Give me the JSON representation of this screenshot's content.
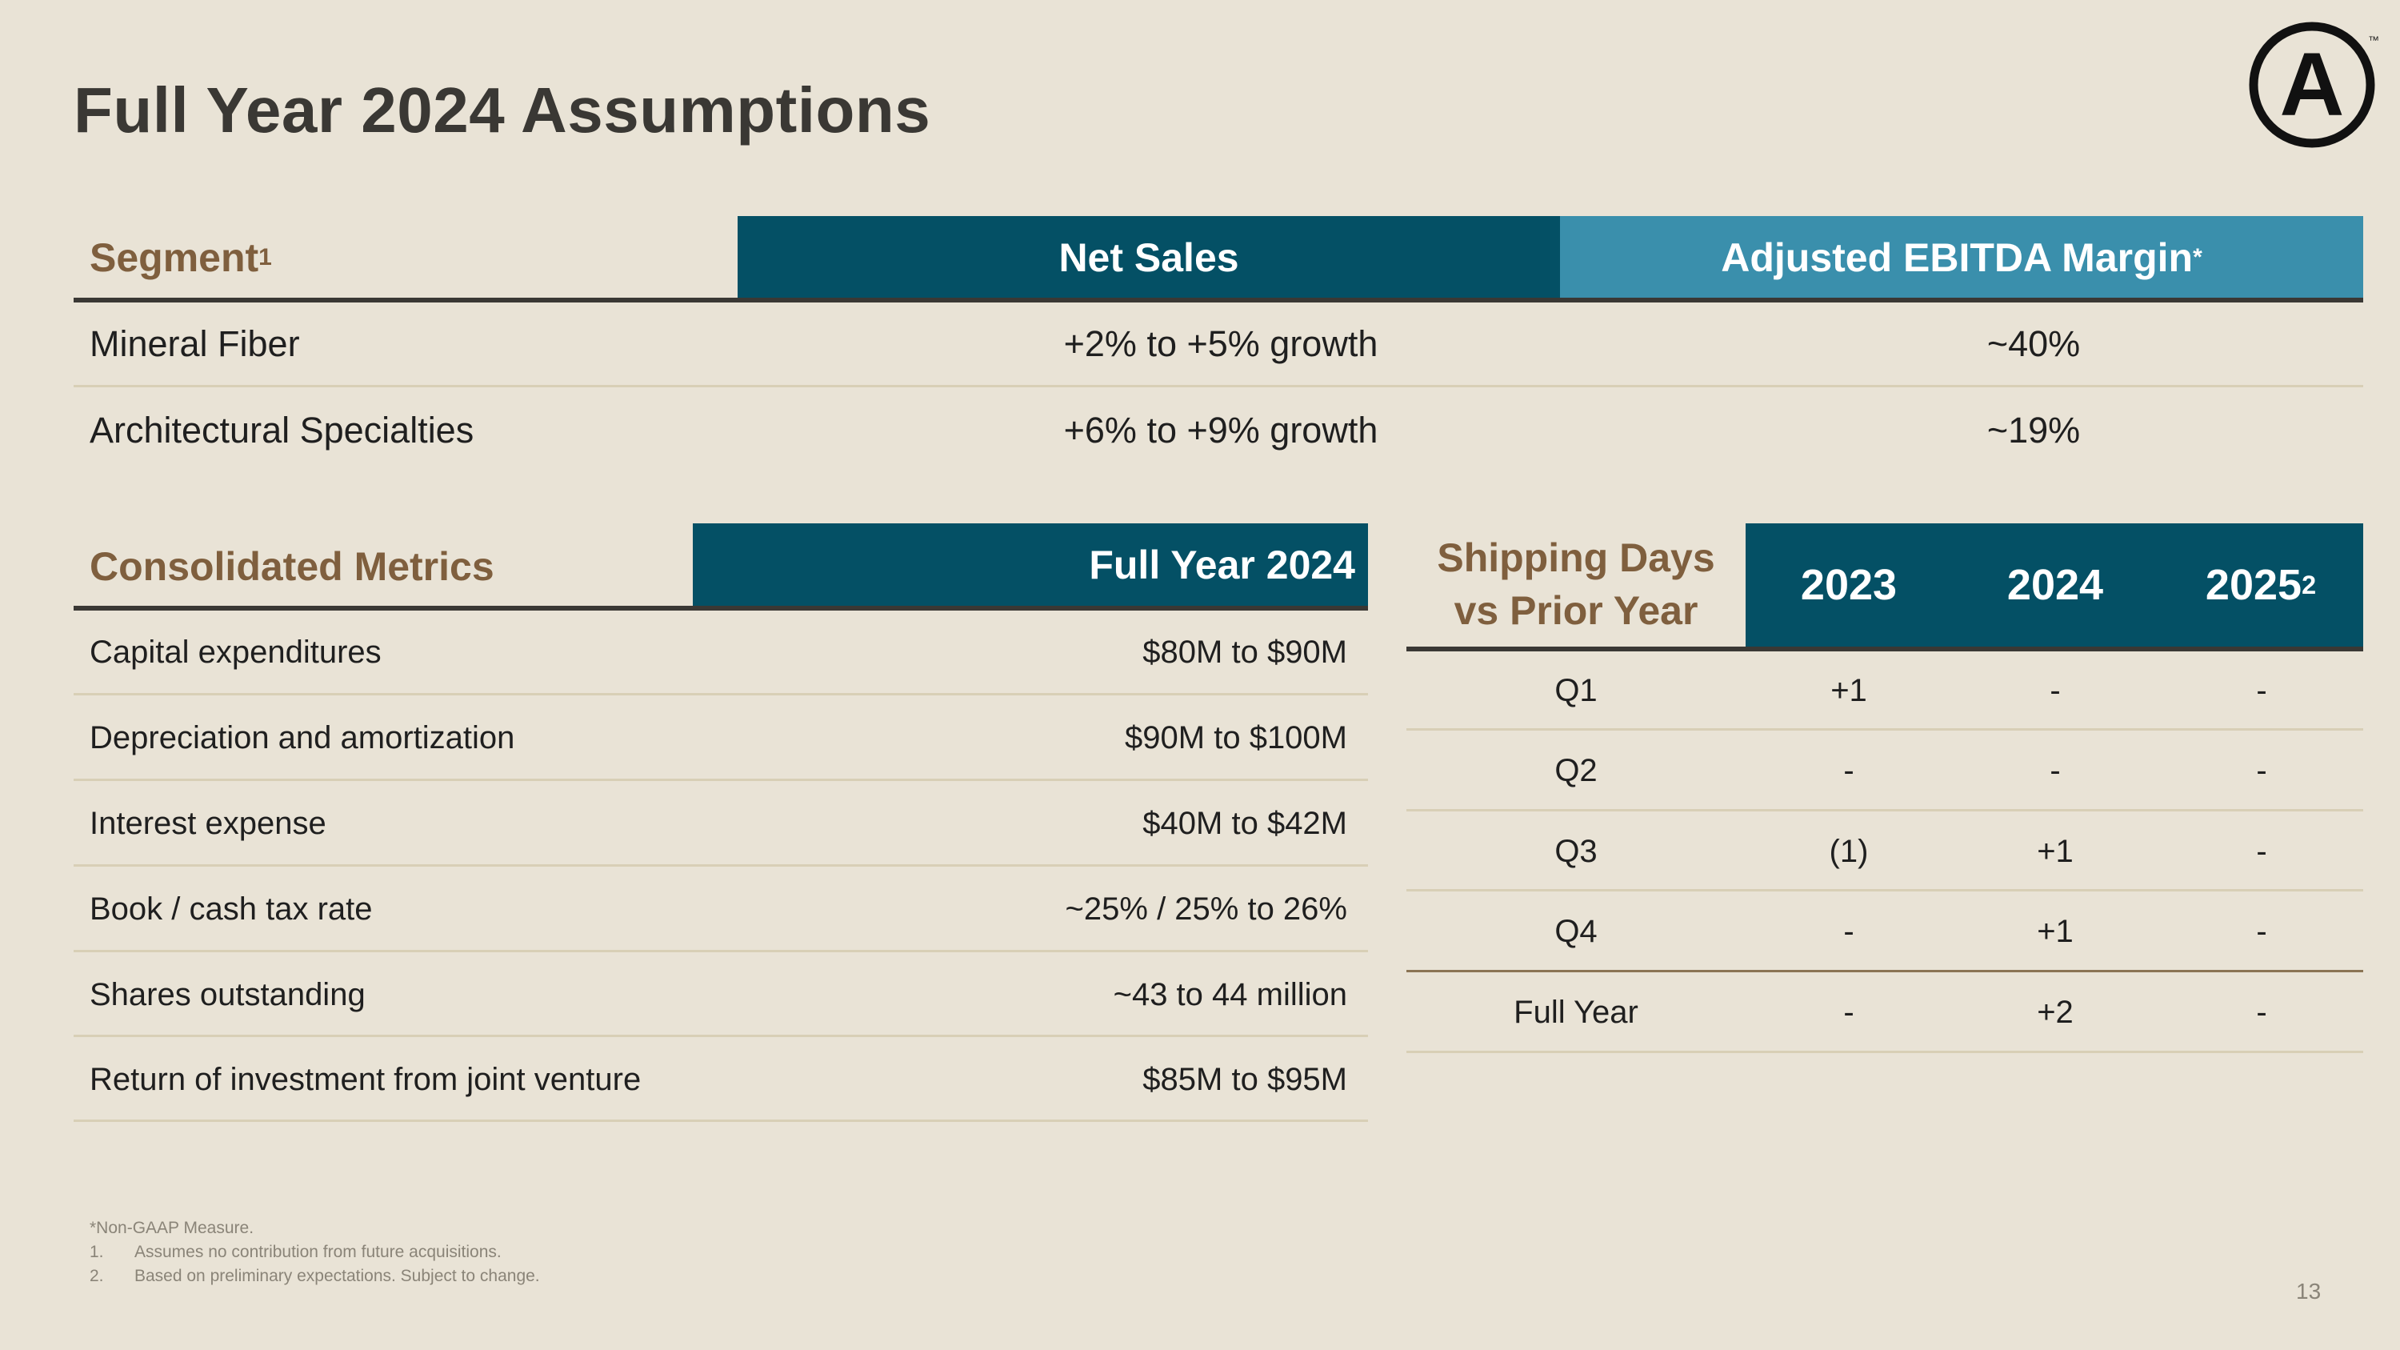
{
  "title": "Full Year 2024 Assumptions",
  "brand": {
    "logo_letter": "A",
    "trademark": "™"
  },
  "segment_table": {
    "header": {
      "segment": "Segment",
      "segment_sup": "1",
      "net_sales": "Net Sales",
      "ebitda": "Adjusted EBITDA Margin",
      "ebitda_sup": "*"
    },
    "rows": [
      {
        "segment": "Mineral Fiber",
        "net_sales": "+2% to +5% growth",
        "ebitda": "~40%"
      },
      {
        "segment": "Architectural Specialties",
        "net_sales": "+6% to +9% growth",
        "ebitda": "~19%"
      }
    ]
  },
  "consolidated_table": {
    "header": {
      "metric": "Consolidated Metrics",
      "value": "Full Year 2024"
    },
    "rows": [
      {
        "metric": "Capital expenditures",
        "value": "$80M to $90M"
      },
      {
        "metric": "Depreciation and amortization",
        "value": "$90M to $100M"
      },
      {
        "metric": "Interest expense",
        "value": "$40M to $42M"
      },
      {
        "metric": "Book / cash tax rate",
        "value": "~25% / 25% to 26%"
      },
      {
        "metric": "Shares outstanding",
        "value": "~43 to 44 million"
      },
      {
        "metric": "Return of investment from joint venture",
        "value": "$85M to $95M"
      }
    ]
  },
  "shipping_table": {
    "header": {
      "label_line1": "Shipping Days",
      "label_line2": "vs Prior Year",
      "y2023": "2023",
      "y2024": "2024",
      "y2025": "2025",
      "y2025_sup": "2"
    },
    "rows": [
      {
        "period": "Q1",
        "y2023": "+1",
        "y2024": "-",
        "y2025": "-"
      },
      {
        "period": "Q2",
        "y2023": "-",
        "y2024": "-",
        "y2025": "-"
      },
      {
        "period": "Q3",
        "y2023": "(1)",
        "y2024": "+1",
        "y2025": "-"
      },
      {
        "period": "Q4",
        "y2023": "-",
        "y2024": "+1",
        "y2025": "-"
      },
      {
        "period": "Full Year",
        "y2023": "-",
        "y2024": "+2",
        "y2025": "-"
      }
    ]
  },
  "footnotes": {
    "note_star": "*Non-GAAP Measure.",
    "note1_num": "1.",
    "note1": "Assumes no contribution from future acquisitions.",
    "note2_num": "2.",
    "note2": "Based on preliminary expectations. Subject to change."
  },
  "page_number": "13",
  "colors": {
    "background": "#e9e3d6",
    "dark_teal": "#045065",
    "light_teal": "#3a8fac",
    "brown": "#7f5f3e"
  }
}
